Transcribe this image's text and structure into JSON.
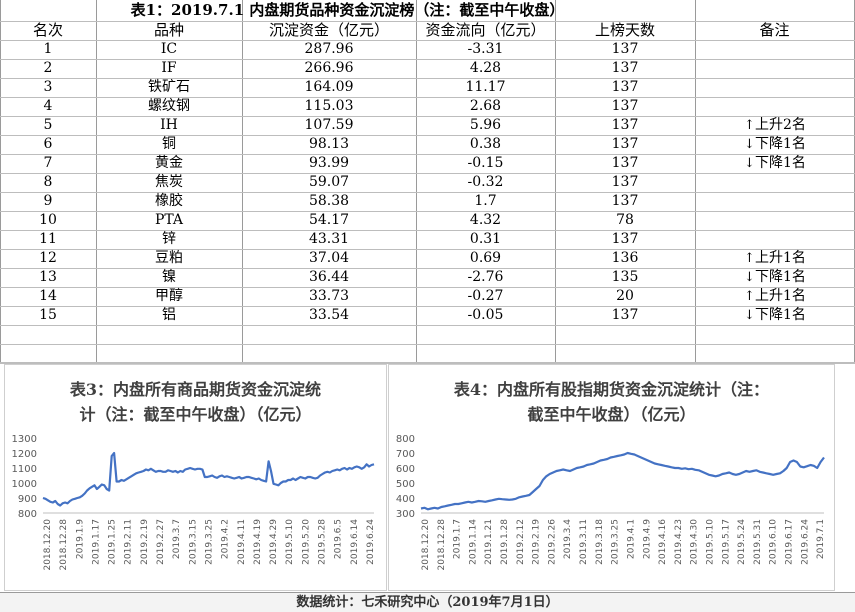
{
  "table": {
    "title": "表1：2019.7.1 内盘期货品种资金沉淀榜（注：截至中午收盘）",
    "headers": [
      "名次",
      "品种",
      "沉淀资金（亿元）",
      "资金流向（亿元）",
      "上榜天数",
      "备注"
    ],
    "rows": [
      {
        "rank": "1",
        "name": "IC",
        "funds": "287.96",
        "flow": "-3.31",
        "days": "137",
        "note_dir": "",
        "note": ""
      },
      {
        "rank": "2",
        "name": "IF",
        "funds": "266.96",
        "flow": "4.28",
        "days": "137",
        "note_dir": "",
        "note": ""
      },
      {
        "rank": "3",
        "name": "铁矿石",
        "funds": "164.09",
        "flow": "11.17",
        "days": "137",
        "note_dir": "",
        "note": ""
      },
      {
        "rank": "4",
        "name": "螺纹钢",
        "funds": "115.03",
        "flow": "2.68",
        "days": "137",
        "note_dir": "",
        "note": ""
      },
      {
        "rank": "5",
        "name": "IH",
        "funds": "107.59",
        "flow": "5.96",
        "days": "137",
        "note_dir": "up",
        "note": "上升2名"
      },
      {
        "rank": "6",
        "name": "铜",
        "funds": "98.13",
        "flow": "0.38",
        "days": "137",
        "note_dir": "down",
        "note": "下降1名"
      },
      {
        "rank": "7",
        "name": "黄金",
        "funds": "93.99",
        "flow": "-0.15",
        "days": "137",
        "note_dir": "down",
        "note": "下降1名"
      },
      {
        "rank": "8",
        "name": "焦炭",
        "funds": "59.07",
        "flow": "-0.32",
        "days": "137",
        "note_dir": "",
        "note": ""
      },
      {
        "rank": "9",
        "name": "橡胶",
        "funds": "58.38",
        "flow": "1.7",
        "days": "137",
        "note_dir": "",
        "note": ""
      },
      {
        "rank": "10",
        "name": "PTA",
        "funds": "54.17",
        "flow": "4.32",
        "days": "78",
        "note_dir": "",
        "note": ""
      },
      {
        "rank": "11",
        "name": "锌",
        "funds": "43.31",
        "flow": "0.31",
        "days": "137",
        "note_dir": "",
        "note": ""
      },
      {
        "rank": "12",
        "name": "豆粕",
        "funds": "37.04",
        "flow": "0.69",
        "days": "136",
        "note_dir": "up",
        "note": "上升1名"
      },
      {
        "rank": "13",
        "name": "镍",
        "funds": "36.44",
        "flow": "-2.76",
        "days": "135",
        "note_dir": "down",
        "note": "下降1名"
      },
      {
        "rank": "14",
        "name": "甲醇",
        "funds": "33.73",
        "flow": "-0.27",
        "days": "20",
        "note_dir": "up",
        "note": "上升1名"
      },
      {
        "rank": "15",
        "name": "铝",
        "funds": "33.54",
        "flow": "-0.05",
        "days": "137",
        "note_dir": "down",
        "note": "下降1名"
      }
    ]
  },
  "footer": "数据统计：七禾研究中心（2019年7月1日）",
  "chart_data": [
    {
      "type": "line",
      "title_line1": "表3：内盘所有商品期货资金沉淀统",
      "title_line2": "计（注：截至中午收盘）（亿元）",
      "ylim": [
        800,
        1300
      ],
      "yticks": [
        800,
        900,
        1000,
        1100,
        1200,
        1300
      ],
      "xticks": [
        "2018.12.20",
        "2018.12.28",
        "2019.1.9",
        "2019.1.17",
        "2019.1.25",
        "2019.2.11",
        "2019.2.19",
        "2019.2.27",
        "2019.3.7",
        "2019.3.15",
        "2019.3.25",
        "2019.4.2",
        "2019.4.11",
        "2019.4.19",
        "2019.4.29",
        "2019.5.10",
        "2019.5.20",
        "2019.5.28",
        "2019.6.5",
        "2019.6.14",
        "2019.6.24"
      ],
      "grid": false,
      "color": "#4472c4",
      "values": [
        900,
        895,
        885,
        875,
        870,
        880,
        860,
        850,
        865,
        870,
        865,
        880,
        890,
        895,
        900,
        905,
        915,
        930,
        950,
        965,
        975,
        985,
        960,
        975,
        990,
        985,
        960,
        950,
        1180,
        1200,
        1010,
        1010,
        1020,
        1015,
        1025,
        1035,
        1045,
        1055,
        1065,
        1070,
        1075,
        1080,
        1090,
        1085,
        1095,
        1085,
        1075,
        1080,
        1080,
        1075,
        1075,
        1085,
        1080,
        1075,
        1080,
        1070,
        1080,
        1075,
        1090,
        1095,
        1100,
        1095,
        1090,
        1095,
        1095,
        1090,
        1040,
        1040,
        1045,
        1050,
        1040,
        1035,
        1045,
        1050,
        1040,
        1045,
        1040,
        1035,
        1030,
        1035,
        1040,
        1030,
        1035,
        1040,
        1040,
        1035,
        1030,
        1025,
        1030,
        1020,
        1015,
        1010,
        1145,
        1080,
        995,
        990,
        985,
        1000,
        1010,
        1010,
        1020,
        1020,
        1030,
        1020,
        1030,
        1040,
        1035,
        1030,
        1040,
        1040,
        1035,
        1030,
        1035,
        1050,
        1060,
        1070,
        1075,
        1070,
        1080,
        1085,
        1090,
        1085,
        1095,
        1100,
        1090,
        1100,
        1095,
        1105,
        1110,
        1105,
        1095,
        1105,
        1125,
        1110,
        1120,
        1125
      ]
    },
    {
      "type": "line",
      "title_line1": "表4：内盘所有股指期货资金沉淀统计（注：",
      "title_line2": "截至中午收盘）（亿元）",
      "ylim": [
        300,
        800
      ],
      "yticks": [
        300,
        400,
        500,
        600,
        700,
        800
      ],
      "xticks": [
        "2018.12.20",
        "2018.12.28",
        "2019.1.7",
        "2019.1.14",
        "2019.1.21",
        "2019.1.28",
        "2019.2.12",
        "2019.2.19",
        "2019.2.26",
        "2019.3.4",
        "2019.3.11",
        "2019.3.18",
        "2019.3.25",
        "2019.4.1",
        "2019.4.9",
        "2019.4.16",
        "2019.4.23",
        "2019.4.30",
        "2019.5.10",
        "2019.5.17",
        "2019.5.24",
        "2019.5.31",
        "2019.6.10",
        "2019.6.17",
        "2019.6.24",
        "2019.7.1"
      ],
      "grid": false,
      "color": "#4472c4",
      "values": [
        330,
        335,
        325,
        330,
        335,
        330,
        340,
        345,
        350,
        355,
        360,
        360,
        365,
        370,
        375,
        370,
        375,
        380,
        378,
        375,
        380,
        385,
        390,
        395,
        392,
        390,
        388,
        390,
        395,
        405,
        410,
        415,
        420,
        440,
        460,
        480,
        520,
        545,
        560,
        570,
        580,
        585,
        590,
        585,
        580,
        590,
        600,
        605,
        610,
        620,
        625,
        630,
        640,
        650,
        655,
        660,
        670,
        675,
        680,
        685,
        690,
        700,
        695,
        690,
        680,
        670,
        660,
        650,
        640,
        630,
        625,
        620,
        615,
        610,
        605,
        600,
        600,
        595,
        598,
        592,
        595,
        588,
        585,
        575,
        565,
        555,
        550,
        545,
        550,
        560,
        565,
        570,
        560,
        555,
        560,
        570,
        580,
        575,
        580,
        585,
        575,
        570,
        565,
        560,
        555,
        560,
        565,
        580,
        600,
        640,
        650,
        640,
        610,
        605,
        612,
        620,
        615,
        600,
        640,
        670
      ]
    }
  ]
}
